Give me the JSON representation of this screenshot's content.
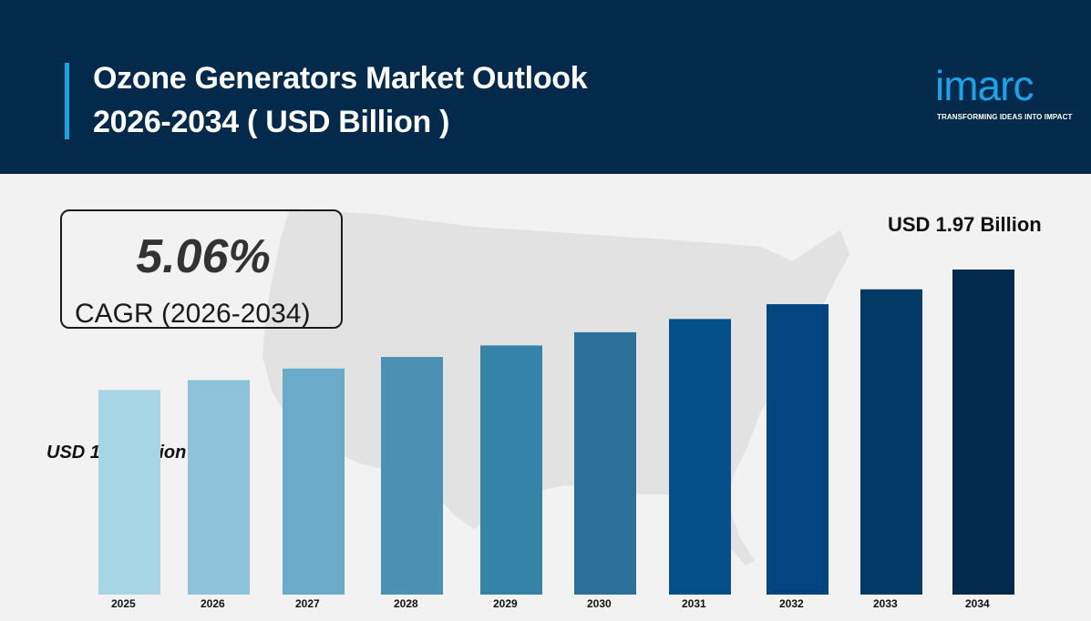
{
  "header": {
    "title_line1": "Ozone Generators Market Outlook",
    "title_line2": "2026-2034 ( USD Billion )",
    "background": "#03294b",
    "accent": "#1aa3e8"
  },
  "logo": {
    "word": "imarc",
    "tagline": "TRANSFORMING IDEAS INTO IMPACT",
    "color": "#1aa3e8"
  },
  "cagr": {
    "value": "5.06%",
    "label": "CAGR (2026-2034)"
  },
  "annotations": {
    "start_value": "USD 1.24 Billion",
    "end_value": "USD 1.97 Billion"
  },
  "chart_data": {
    "type": "bar",
    "categories": [
      "2025",
      "2026",
      "2027",
      "2028",
      "2029",
      "2030",
      "2031",
      "2032",
      "2033",
      "2034"
    ],
    "values": [
      1.24,
      1.3,
      1.37,
      1.44,
      1.51,
      1.59,
      1.67,
      1.76,
      1.85,
      1.97
    ],
    "colors": [
      "#a8d5e6",
      "#8cc3da",
      "#6aabc9",
      "#4a91b4",
      "#3583a6",
      "#2b7099",
      "#04508a",
      "#034580",
      "#033a66",
      "#022a4d"
    ],
    "title": "Ozone Generators Market Outlook 2026-2034 ( USD Billion )",
    "xlabel": "",
    "ylabel": "",
    "grid": false,
    "legend": "none"
  }
}
